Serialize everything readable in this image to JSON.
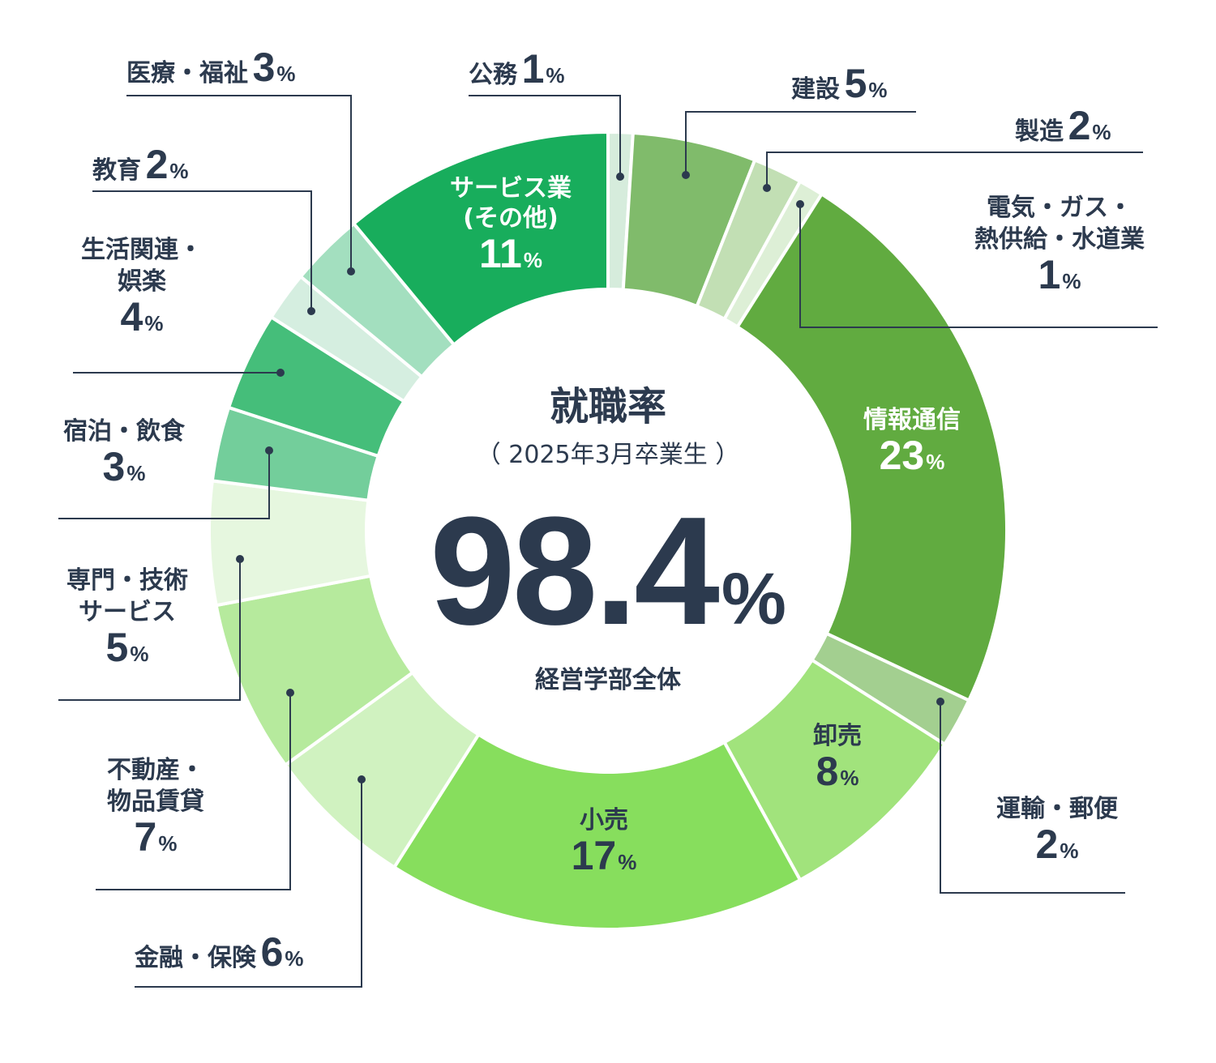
{
  "center": {
    "title": "就職率",
    "subtitle": "（ 2025年3月卒業生 ）",
    "value": "98.4",
    "value_unit": "%",
    "caption": "経営学部全体"
  },
  "chart_data": {
    "type": "pie",
    "donut": true,
    "unit": "%",
    "slices": [
      {
        "name": "公務",
        "value": 1,
        "color": "#d6ecdc"
      },
      {
        "name": "建設",
        "value": 5,
        "color": "#80bb6b"
      },
      {
        "name": "製造",
        "value": 2,
        "color": "#c2dfb4"
      },
      {
        "name": "電気・ガス・熱供給・水道業",
        "value": 1,
        "color": "#ddefd6"
      },
      {
        "name": "情報通信",
        "value": 23,
        "color": "#61ab40"
      },
      {
        "name": "運輸・郵便",
        "value": 2,
        "color": "#a3cf90"
      },
      {
        "name": "卸売",
        "value": 8,
        "color": "#a1e37c"
      },
      {
        "name": "小売",
        "value": 17,
        "color": "#87de5d"
      },
      {
        "name": "金融・保険",
        "value": 6,
        "color": "#d0f2c0"
      },
      {
        "name": "不動産・物品賃貸",
        "value": 7,
        "color": "#b6ea9d"
      },
      {
        "name": "専門・技術サービス",
        "value": 5,
        "color": "#e6f7df"
      },
      {
        "name": "宿泊・飲食",
        "value": 3,
        "color": "#73ce9b"
      },
      {
        "name": "生活関連・娯楽",
        "value": 4,
        "color": "#45be7a"
      },
      {
        "name": "教育",
        "value": 2,
        "color": "#d5eee0"
      },
      {
        "name": "医療・福祉",
        "value": 3,
        "color": "#a3dfbf"
      },
      {
        "name": "サービス業(その他)",
        "value": 11,
        "color": "#18ad5c"
      }
    ]
  },
  "labels": {
    "koumu": {
      "line1": "公務",
      "pct": "1",
      "unit": "%"
    },
    "kensetsu": {
      "line1": "建設",
      "pct": "5",
      "unit": "%"
    },
    "seizou": {
      "line1": "製造",
      "pct": "2",
      "unit": "%"
    },
    "denki": {
      "line1": "電気・ガス・",
      "line2": "熱供給・水道業",
      "pct": "1",
      "unit": "%"
    },
    "jouhou": {
      "line1": "情報通信",
      "pct": "23",
      "unit": "%"
    },
    "unyu": {
      "line1": "運輸・郵便",
      "pct": "2",
      "unit": "%"
    },
    "oroshi": {
      "line1": "卸売",
      "pct": "8",
      "unit": "%"
    },
    "kouri": {
      "line1": "小売",
      "pct": "17",
      "unit": "%"
    },
    "kinyu": {
      "line1": "金融・保険",
      "pct": "6",
      "unit": "%"
    },
    "fudousan": {
      "line1": "不動産・",
      "line2": "物品賃貸",
      "pct": "7",
      "unit": "%"
    },
    "senmon": {
      "line1": "専門・技術",
      "line2": "サービス",
      "pct": "5",
      "unit": "%"
    },
    "shukuhaku": {
      "line1": "宿泊・飲食",
      "pct": "3",
      "unit": "%"
    },
    "seikatsu": {
      "line1": "生活関連・",
      "line2": "娯楽",
      "pct": "4",
      "unit": "%"
    },
    "kyouiku": {
      "line1": "教育",
      "pct": "2",
      "unit": "%"
    },
    "iryou": {
      "line1": "医療・福祉",
      "pct": "3",
      "unit": "%"
    },
    "service": {
      "line1": "サービス業",
      "line2": "(その他)",
      "pct": "11",
      "unit": "%"
    }
  }
}
